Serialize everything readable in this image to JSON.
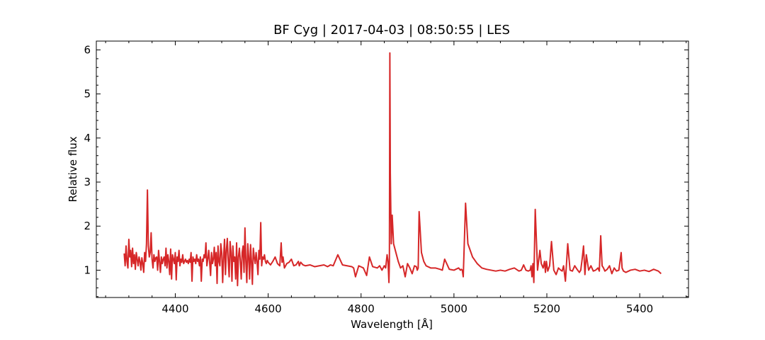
{
  "chart_data": {
    "type": "line",
    "title": "BF Cyg | 2017-04-03 | 08:50:55 | LES",
    "xlabel": "Wavelength [Å]",
    "ylabel": "Relative flux",
    "xlim": [
      4230,
      5505
    ],
    "ylim": [
      0.38,
      6.2
    ],
    "xticks": [
      4400,
      4600,
      4800,
      5000,
      5200,
      5400
    ],
    "yticks": [
      1,
      2,
      3,
      4,
      5,
      6
    ],
    "xtick_labels": [
      "4400",
      "4600",
      "4800",
      "5000",
      "5200",
      "5400"
    ],
    "ytick_labels": [
      "1",
      "2",
      "3",
      "4",
      "5",
      "6"
    ],
    "grid": false,
    "series": [
      {
        "color": "#d62728",
        "x": [
          4290,
          4292,
          4294,
          4296,
          4298,
          4300,
          4302,
          4304,
          4306,
          4308,
          4310,
          4312,
          4314,
          4316,
          4318,
          4320,
          4322,
          4324,
          4326,
          4328,
          4330,
          4332,
          4334,
          4336,
          4338,
          4340,
          4342,
          4344,
          4346,
          4348,
          4350,
          4352,
          4354,
          4356,
          4358,
          4360,
          4362,
          4364,
          4366,
          4368,
          4370,
          4372,
          4374,
          4376,
          4378,
          4380,
          4382,
          4384,
          4386,
          4388,
          4390,
          4392,
          4394,
          4396,
          4398,
          4400,
          4402,
          4404,
          4406,
          4408,
          4410,
          4412,
          4414,
          4416,
          4418,
          4420,
          4422,
          4424,
          4426,
          4428,
          4430,
          4432,
          4434,
          4436,
          4438,
          4440,
          4442,
          4444,
          4446,
          4448,
          4450,
          4452,
          4454,
          4456,
          4458,
          4460,
          4462,
          4464,
          4466,
          4468,
          4470,
          4472,
          4474,
          4476,
          4478,
          4480,
          4482,
          4484,
          4486,
          4488,
          4490,
          4492,
          4494,
          4496,
          4498,
          4500,
          4502,
          4504,
          4506,
          4508,
          4510,
          4512,
          4514,
          4516,
          4518,
          4520,
          4522,
          4524,
          4526,
          4528,
          4530,
          4532,
          4534,
          4536,
          4538,
          4540,
          4542,
          4544,
          4546,
          4548,
          4550,
          4552,
          4554,
          4556,
          4558,
          4560,
          4562,
          4564,
          4566,
          4568,
          4570,
          4572,
          4574,
          4576,
          4578,
          4580,
          4582,
          4584,
          4586,
          4588,
          4590,
          4592,
          4594,
          4596,
          4598,
          4600,
          4605,
          4610,
          4615,
          4620,
          4625,
          4628,
          4630,
          4632,
          4635,
          4640,
          4645,
          4650,
          4655,
          4660,
          4665,
          4667,
          4670,
          4675,
          4680,
          4690,
          4700,
          4710,
          4720,
          4728,
          4731,
          4734,
          4740,
          4750,
          4760,
          4770,
          4780,
          4784,
          4788,
          4795,
          4805,
          4812,
          4818,
          4825,
          4835,
          4840,
          4845,
          4850,
          4853,
          4856,
          4858,
          4860,
          4861,
          4862,
          4863,
          4865,
          4867,
          4870,
          4875,
          4880,
          4885,
          4890,
          4895,
          4900,
          4905,
          4910,
          4915,
          4919,
          4921,
          4923,
          4925,
          4930,
          4935,
          4940,
          4950,
          4960,
          4970,
          4975,
          4980,
          4990,
          5000,
          5010,
          5014,
          5016,
          5018,
          5020,
          5025,
          5030,
          5040,
          5050,
          5060,
          5070,
          5080,
          5090,
          5100,
          5110,
          5120,
          5130,
          5140,
          5145,
          5150,
          5155,
          5160,
          5164,
          5166,
          5168,
          5170,
          5172,
          5175,
          5180,
          5185,
          5188,
          5192,
          5195,
          5197,
          5199,
          5202,
          5206,
          5210,
          5215,
          5220,
          5225,
          5230,
          5233,
          5236,
          5240,
          5245,
          5250,
          5255,
          5260,
          5265,
          5270,
          5273,
          5276,
          5279,
          5282,
          5285,
          5290,
          5295,
          5300,
          5305,
          5310,
          5313,
          5316,
          5319,
          5322,
          5325,
          5330,
          5335,
          5340,
          5345,
          5350,
          5355,
          5360,
          5362,
          5365,
          5370,
          5380,
          5390,
          5400,
          5410,
          5420,
          5430,
          5440,
          5446
        ],
        "y": [
          1.38,
          1.1,
          1.55,
          1.2,
          1.05,
          1.7,
          1.3,
          1.45,
          1.08,
          1.5,
          1.15,
          1.35,
          1.02,
          1.4,
          1.25,
          1.1,
          1.3,
          1.2,
          1.0,
          1.28,
          1.15,
          0.95,
          1.4,
          1.2,
          1.6,
          2.82,
          1.55,
          1.3,
          1.4,
          1.85,
          1.25,
          1.05,
          1.35,
          1.2,
          1.28,
          1.3,
          1.0,
          1.45,
          1.2,
          0.95,
          1.3,
          1.15,
          1.25,
          1.3,
          1.1,
          1.5,
          1.05,
          1.35,
          1.2,
          0.9,
          1.48,
          0.8,
          1.35,
          1.25,
          1.15,
          1.4,
          0.78,
          1.3,
          1.2,
          1.45,
          1.1,
          1.25,
          1.18,
          1.35,
          1.15,
          1.2,
          1.25,
          1.18,
          1.22,
          1.15,
          1.25,
          1.18,
          1.4,
          0.75,
          1.3,
          1.2,
          1.25,
          1.15,
          1.35,
          1.2,
          1.25,
          1.1,
          1.3,
          0.75,
          1.25,
          1.2,
          1.35,
          1.28,
          1.62,
          1.1,
          1.25,
          1.45,
          1.18,
          0.88,
          1.4,
          1.15,
          1.25,
          1.52,
          1.1,
          1.4,
          0.7,
          1.55,
          1.2,
          1.1,
          1.6,
          1.4,
          0.72,
          1.3,
          1.7,
          0.9,
          1.45,
          1.72,
          1.2,
          0.85,
          1.65,
          1.4,
          0.75,
          1.55,
          1.2,
          1.3,
          0.8,
          1.62,
          0.65,
          1.3,
          1.5,
          1.2,
          0.8,
          1.4,
          1.55,
          0.95,
          1.96,
          1.2,
          0.72,
          1.6,
          1.3,
          0.8,
          1.58,
          1.2,
          0.68,
          1.5,
          1.3,
          1.15,
          1.4,
          1.2,
          0.9,
          1.45,
          1.25,
          2.08,
          1.1,
          1.3,
          1.25,
          1.35,
          1.2,
          1.15,
          1.22,
          1.18,
          1.12,
          1.2,
          1.3,
          1.15,
          1.1,
          1.62,
          1.18,
          1.3,
          1.05,
          1.15,
          1.18,
          1.25,
          1.1,
          1.12,
          1.2,
          1.1,
          1.18,
          1.12,
          1.1,
          1.12,
          1.08,
          1.1,
          1.12,
          1.08,
          1.1,
          1.12,
          1.1,
          1.35,
          1.12,
          1.1,
          1.08,
          1.05,
          0.85,
          1.1,
          1.05,
          0.88,
          1.3,
          1.08,
          1.05,
          1.1,
          1.0,
          1.1,
          1.05,
          1.35,
          1.2,
          0.72,
          1.2,
          5.93,
          3.2,
          1.6,
          2.25,
          1.6,
          1.4,
          1.2,
          1.05,
          1.1,
          0.85,
          1.15,
          1.05,
          0.92,
          1.1,
          1.08,
          1.0,
          1.05,
          2.33,
          1.4,
          1.2,
          1.1,
          1.05,
          1.05,
          1.02,
          1.0,
          1.25,
          1.02,
          1.0,
          1.05,
          1.0,
          1.02,
          1.0,
          0.85,
          2.52,
          1.6,
          1.3,
          1.15,
          1.05,
          1.02,
          1.0,
          0.98,
          1.0,
          0.98,
          1.02,
          1.05,
          0.98,
          1.0,
          1.12,
          1.0,
          0.98,
          1.0,
          1.1,
          0.85,
          1.15,
          0.72,
          2.38,
          1.0,
          1.45,
          1.15,
          1.05,
          1.2,
          0.95,
          1.2,
          0.98,
          1.1,
          1.65,
          1.0,
          0.9,
          1.05,
          1.0,
          0.98,
          1.1,
          0.75,
          1.6,
          1.0,
          0.98,
          1.1,
          1.02,
          0.95,
          1.0,
          1.25,
          1.55,
          0.9,
          1.35,
          1.0,
          1.1,
          0.98,
          1.0,
          1.05,
          0.98,
          1.78,
          1.1,
          1.05,
          0.98,
          1.02,
          1.1,
          0.92,
          1.05,
          0.98,
          1.0,
          1.4,
          1.05,
          0.98,
          0.95,
          1.0,
          1.02,
          0.98,
          1.0,
          0.97,
          1.02,
          0.98,
          0.92
        ]
      }
    ]
  }
}
